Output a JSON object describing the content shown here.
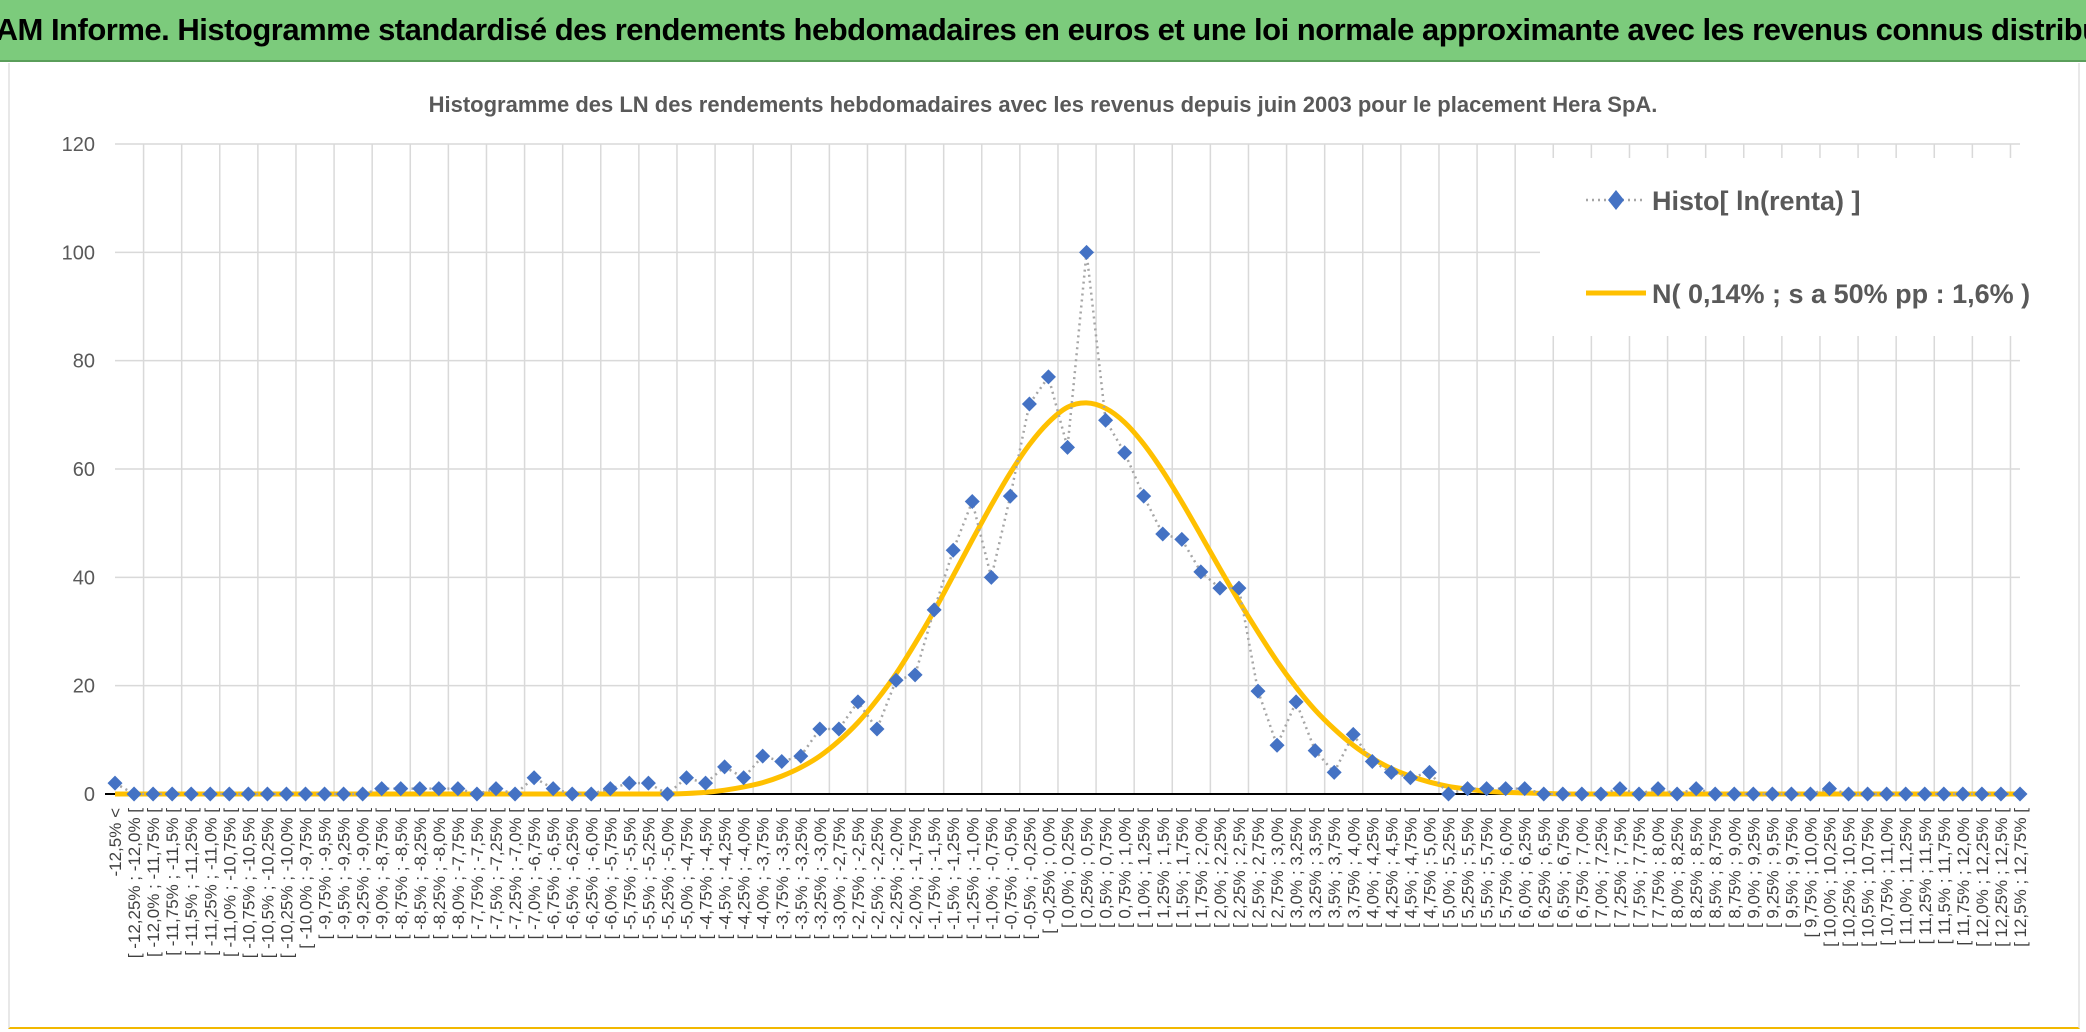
{
  "banner": {
    "title": "ADAM Informe. Histogramme standardisé des rendements hebdomadaires en euros et une loi normale approximante avec les revenus connus distribués"
  },
  "colors": {
    "banner_bg": "#7ccb7c",
    "accent": "#f2b800",
    "histogram_marker": "#4472c4",
    "histogram_line": "#a6a6a6",
    "normal_curve": "#ffc000",
    "gridline": "#d9d9d9"
  },
  "chart_data": {
    "type": "line",
    "title": "Histogramme des LN des rendements hebdomadaires avec les revenus depuis juin 2003 pour le placement Hera SpA.",
    "xlabel": "",
    "ylabel": "",
    "ylim": [
      0,
      120
    ],
    "yticks": [
      0,
      20,
      40,
      60,
      80,
      100,
      120
    ],
    "grid": true,
    "legend_position": "top-right",
    "categories": [
      "-12,5% <",
      "[ -12,25% ; -12,0% [",
      "[ -12,0% ; -11,75% [",
      "[ -11,75% ; -11,5% [",
      "[ -11,5% ; -11,25% [",
      "[ -11,25% ; -11,0% [",
      "[ -11,0% ; -10,75% [",
      "[ -10,75% ; -10,5% [",
      "[ -10,5% ; -10,25% [",
      "[ -10,25% ; -10,0% [",
      "[ -10,0% ; -9,75% [",
      "[ -9,75% ; -9,5% [",
      "[ -9,5% ; -9,25% [",
      "[ -9,25% ; -9,0% [",
      "[ -9,0% ; -8,75% [",
      "[ -8,75% ; -8,5% [",
      "[ -8,5% ; -8,25% [",
      "[ -8,25% ; -8,0% [",
      "[ -8,0% ; -7,75% [",
      "[ -7,75% ; -7,5% [",
      "[ -7,5% ; -7,25% [",
      "[ -7,25% ; -7,0% [",
      "[ -7,0% ; -6,75% [",
      "[ -6,75% ; -6,5% [",
      "[ -6,5% ; -6,25% [",
      "[ -6,25% ; -6,0% [",
      "[ -6,0% ; -5,75% [",
      "[ -5,75% ; -5,5% [",
      "[ -5,5% ; -5,25% [",
      "[ -5,25% ; -5,0% [",
      "[ -5,0% ; -4,75% [",
      "[ -4,75% ; -4,5% [",
      "[ -4,5% ; -4,25% [",
      "[ -4,25% ; -4,0% [",
      "[ -4,0% ; -3,75% [",
      "[ -3,75% ; -3,5% [",
      "[ -3,5% ; -3,25% [",
      "[ -3,25% ; -3,0% [",
      "[ -3,0% ; -2,75% [",
      "[ -2,75% ; -2,5% [",
      "[ -2,5% ; -2,25% [",
      "[ -2,25% ; -2,0% [",
      "[ -2,0% ; -1,75% [",
      "[ -1,75% ; -1,5% [",
      "[ -1,5% ; -1,25% [",
      "[ -1,25% ; -1,0% [",
      "[ -1,0% ; -0,75% [",
      "[ -0,75% ; -0,5% [",
      "[ -0,5% ; -0,25% [",
      "[ -0,25% ; 0,0% [",
      "[ 0,0% ; 0,25% [",
      "[ 0,25% ; 0,5% [",
      "[ 0,5% ; 0,75% [",
      "[ 0,75% ; 1,0% [",
      "[ 1,0% ; 1,25% [",
      "[ 1,25% ; 1,5% [",
      "[ 1,5% ; 1,75% [",
      "[ 1,75% ; 2,0% [",
      "[ 2,0% ; 2,25% [",
      "[ 2,25% ; 2,5% [",
      "[ 2,5% ; 2,75% [",
      "[ 2,75% ; 3,0% [",
      "[ 3,0% ; 3,25% [",
      "[ 3,25% ; 3,5% [",
      "[ 3,5% ; 3,75% [",
      "[ 3,75% ; 4,0% [",
      "[ 4,0% ; 4,25% [",
      "[ 4,25% ; 4,5% [",
      "[ 4,5% ; 4,75% [",
      "[ 4,75% ; 5,0% [",
      "[ 5,0% ; 5,25% [",
      "[ 5,25% ; 5,5% [",
      "[ 5,5% ; 5,75% [",
      "[ 5,75% ; 6,0% [",
      "[ 6,0% ; 6,25% [",
      "[ 6,25% ; 6,5% [",
      "[ 6,5% ; 6,75% [",
      "[ 6,75% ; 7,0% [",
      "[ 7,0% ; 7,25% [",
      "[ 7,25% ; 7,5% [",
      "[ 7,5% ; 7,75% [",
      "[ 7,75% ; 8,0% [",
      "[ 8,0% ; 8,25% [",
      "[ 8,25% ; 8,5% [",
      "[ 8,5% ; 8,75% [",
      "[ 8,75% ; 9,0% [",
      "[ 9,0% ; 9,25% [",
      "[ 9,25% ; 9,5% [",
      "[ 9,5% ; 9,75% [",
      "[ 9,75% ; 10,0% [",
      "[ 10,0% ; 10,25% [",
      "[ 10,25% ; 10,5% [",
      "[ 10,5% ; 10,75% [",
      "[ 10,75% ; 11,0% [",
      "[ 11,0% ; 11,25% [",
      "[ 11,25% ; 11,5% [",
      "[ 11,5% ; 11,75% [",
      "[ 11,75% ; 12,0% [",
      "[ 12,0% ; 12,25% [",
      "[ 12,25% ; 12,5% [",
      "[ 12,5% ; 12,75% ["
    ],
    "series": [
      {
        "name": "Histo[ ln(renta) ]",
        "style": "dotted-line-diamond-markers",
        "values": [
          2,
          0,
          0,
          0,
          0,
          0,
          0,
          0,
          0,
          0,
          0,
          0,
          0,
          0,
          1,
          1,
          1,
          1,
          1,
          0,
          1,
          0,
          3,
          1,
          0,
          0,
          1,
          2,
          2,
          0,
          3,
          2,
          5,
          3,
          7,
          6,
          7,
          12,
          12,
          17,
          12,
          21,
          22,
          34,
          45,
          54,
          40,
          55,
          72,
          77,
          64,
          100,
          69,
          63,
          55,
          48,
          47,
          41,
          38,
          38,
          19,
          9,
          17,
          8,
          4,
          11,
          6,
          4,
          3,
          4,
          0,
          1,
          1,
          1,
          1,
          0,
          0,
          0,
          0,
          1,
          0,
          1,
          0,
          1,
          0,
          0,
          0,
          0,
          0,
          0,
          1,
          0,
          0,
          0,
          0,
          0,
          0,
          0,
          0,
          0,
          0
        ]
      },
      {
        "name": "N( 0,14% ; s a 50% pp : 1,6% )",
        "style": "smooth-line",
        "values": [
          0,
          0,
          0,
          0,
          0,
          0,
          0,
          0,
          0,
          0,
          0,
          0,
          0,
          0,
          0,
          0,
          0,
          0,
          0,
          0,
          0,
          0,
          0,
          0,
          0,
          0,
          0,
          0,
          0,
          0,
          0.1,
          0.3,
          0.7,
          1.3,
          2.1,
          3.3,
          4.9,
          7,
          9.8,
          13.2,
          17.4,
          22.2,
          27.8,
          33.8,
          40.3,
          46.9,
          53.3,
          59.3,
          64.5,
          68.6,
          71.4,
          72.2,
          71.2,
          68.6,
          64.6,
          59.6,
          53.9,
          47.8,
          41.6,
          35.6,
          29.9,
          24.5,
          19.7,
          15.5,
          12,
          9,
          6.6,
          4.7,
          3.3,
          2.2,
          1.4,
          0.9,
          0.5,
          0.3,
          0.2,
          0.1,
          0,
          0,
          0,
          0,
          0,
          0,
          0,
          0,
          0,
          0,
          0,
          0,
          0,
          0,
          0,
          0,
          0,
          0,
          0,
          0,
          0,
          0,
          0,
          0,
          0
        ]
      }
    ]
  }
}
